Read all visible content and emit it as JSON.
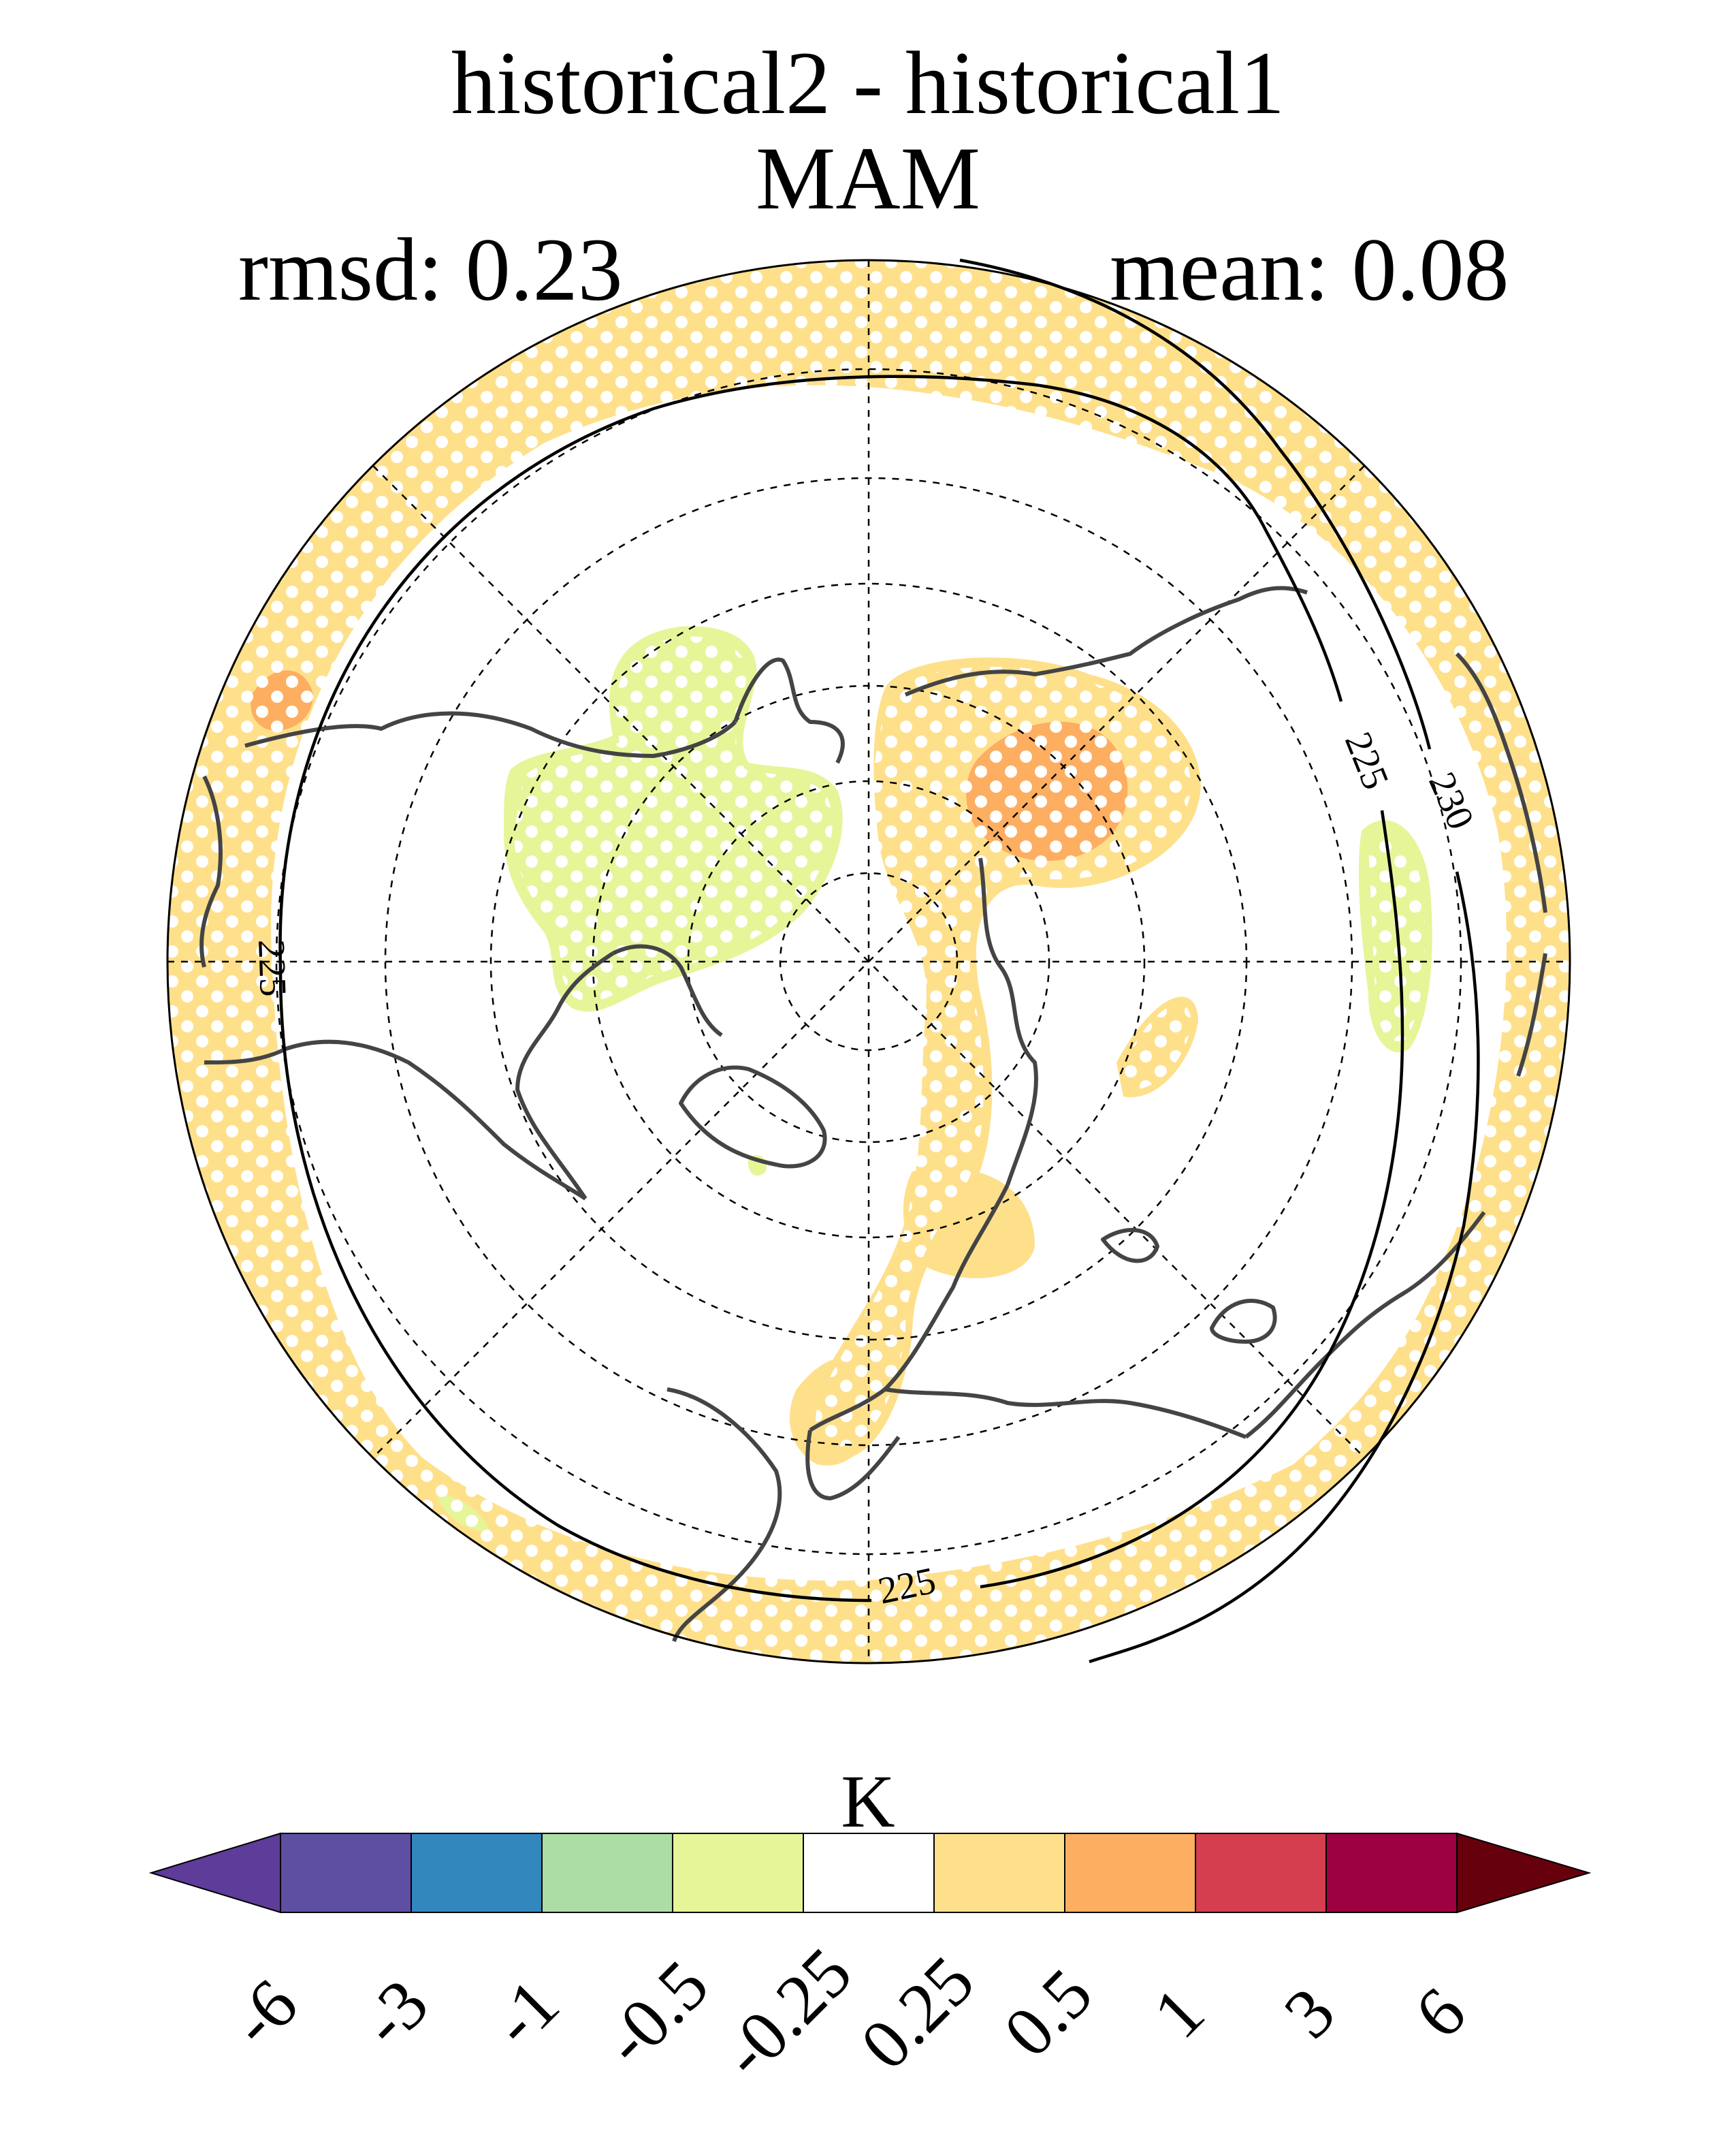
{
  "header": {
    "title": "historical2 - historical1",
    "season": "MAM",
    "rmsd": "rmsd: 0.23",
    "mean": "mean: 0.08"
  },
  "map": {
    "projection": "north polar stereographic",
    "contour_labels": [
      "225",
      "225",
      "225",
      "230"
    ],
    "stippling": "white dots",
    "colors": {
      "light_orange": "#fee08b",
      "orange": "#fdae61",
      "light_green": "#e6f598",
      "coast": "#444444"
    }
  },
  "colorbar": {
    "unit": "K",
    "tick_labels": [
      "-6",
      "-3",
      "-1",
      "-0.5",
      "-0.25",
      "0.25",
      "0.5",
      "1",
      "3",
      "6"
    ],
    "colors": [
      "#5e3c99",
      "#5e4fa2",
      "#3288bd",
      "#abdda4",
      "#e6f598",
      "#ffffff",
      "#fee08b",
      "#fdae61",
      "#d53e4f",
      "#9e0142",
      "#67000d"
    ]
  }
}
